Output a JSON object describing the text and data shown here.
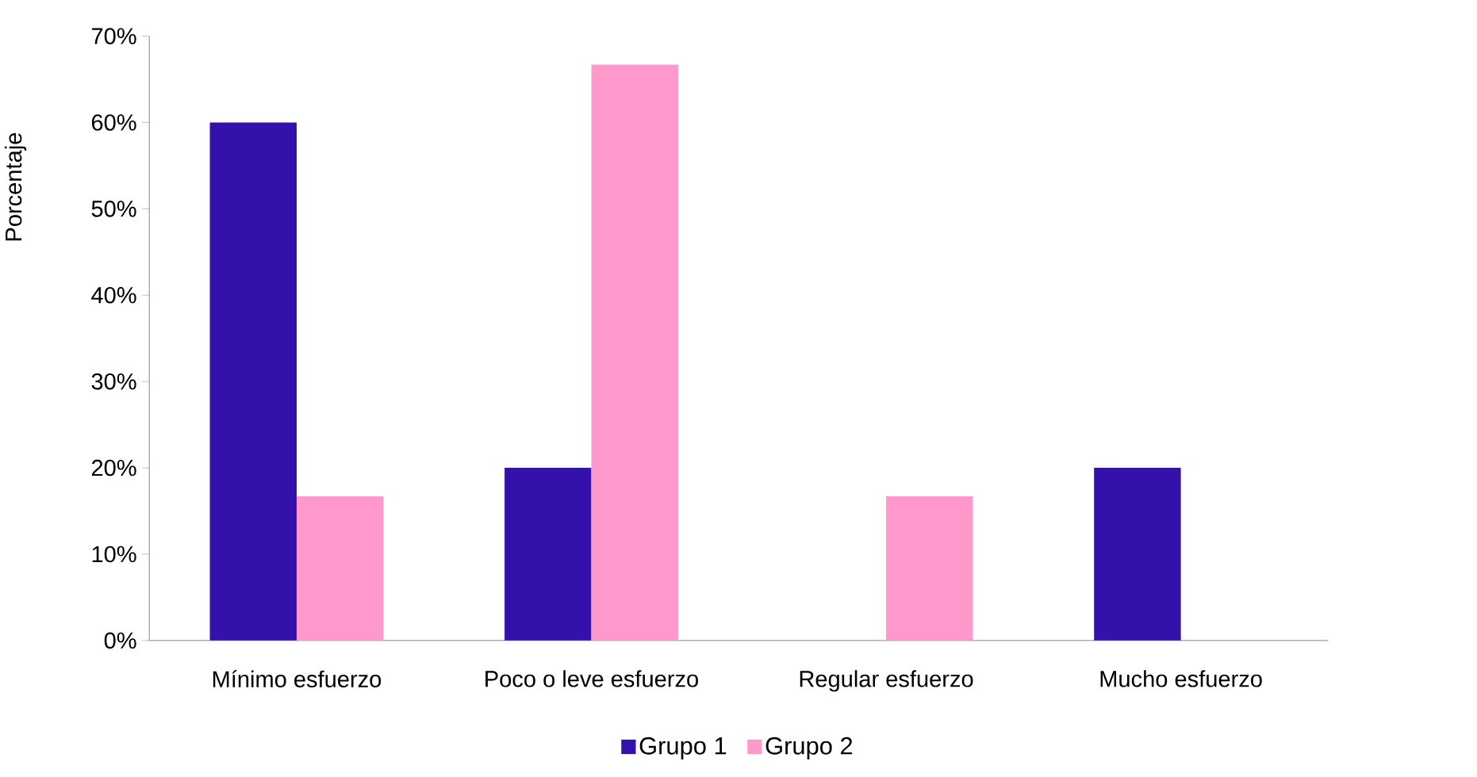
{
  "chart_data": {
    "type": "bar",
    "ylabel": "Porcentaje",
    "categories": [
      "Mínimo esfuerzo",
      "Poco o leve esfuerzo",
      "Regular esfuerzo",
      "Mucho esfuerzo"
    ],
    "series": [
      {
        "name": "Grupo 1",
        "color": "#3311aa",
        "values": [
          60,
          20,
          0,
          20
        ]
      },
      {
        "name": "Grupo 2",
        "color": "#ff99cc",
        "values": [
          16.7,
          66.7,
          16.7,
          0
        ]
      }
    ],
    "ylim": [
      0,
      70
    ],
    "yticks": [
      {
        "value": 0,
        "label": "0%"
      },
      {
        "value": 10,
        "label": "10%"
      },
      {
        "value": 20,
        "label": "20%"
      },
      {
        "value": 30,
        "label": "30%"
      },
      {
        "value": 40,
        "label": "40%"
      },
      {
        "value": 50,
        "label": "50%"
      },
      {
        "value": 60,
        "label": "60%"
      },
      {
        "value": 70,
        "label": "70%"
      }
    ],
    "grid": false,
    "legend": "bottom"
  }
}
